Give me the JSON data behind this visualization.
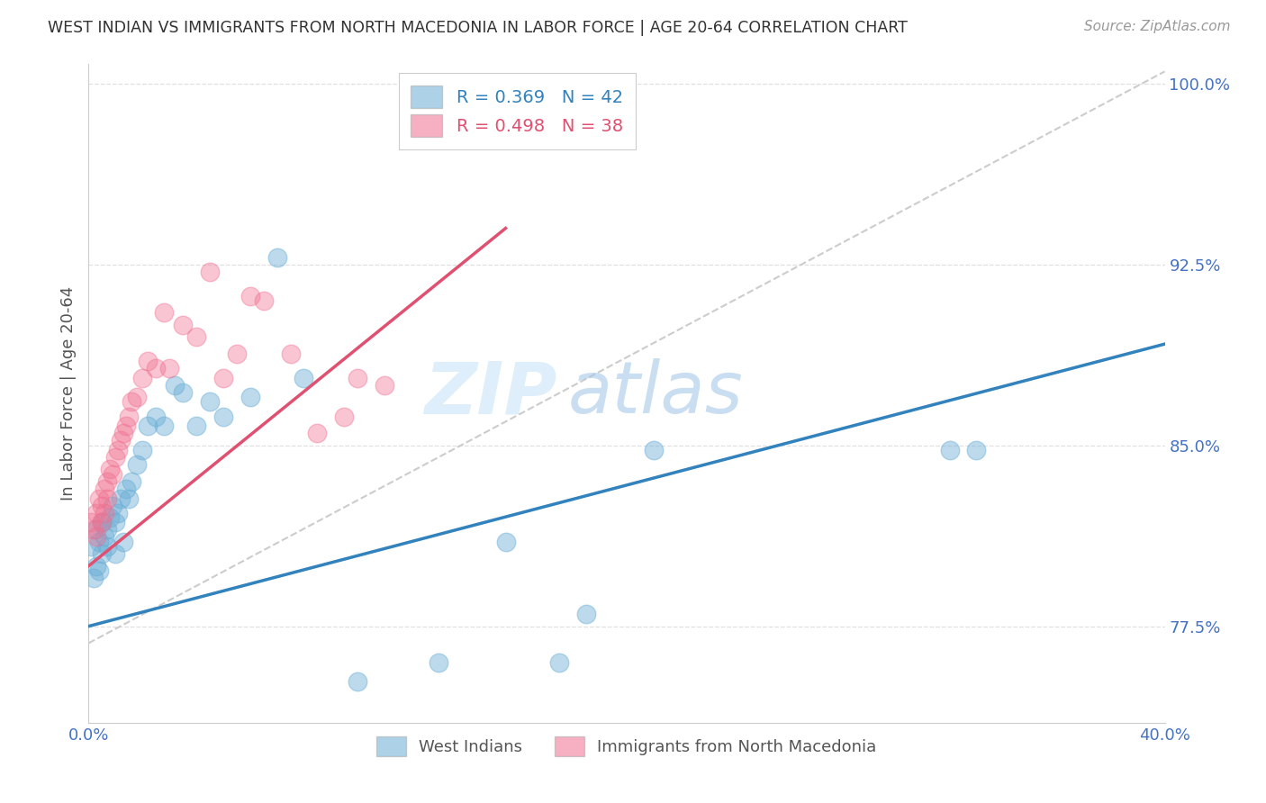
{
  "title": "WEST INDIAN VS IMMIGRANTS FROM NORTH MACEDONIA IN LABOR FORCE | AGE 20-64 CORRELATION CHART",
  "source": "Source: ZipAtlas.com",
  "ylabel": "In Labor Force | Age 20-64",
  "xlim": [
    0.0,
    0.4
  ],
  "ylim": [
    0.735,
    1.008
  ],
  "yticks": [
    0.775,
    0.85,
    0.925,
    1.0
  ],
  "yticklabels": [
    "77.5%",
    "85.0%",
    "92.5%",
    "100.0%"
  ],
  "blue_color": "#6baed6",
  "pink_color": "#f07090",
  "blue_line_color": "#3182bd",
  "pink_line_color": "#e05070",
  "diag_color": "#cccccc",
  "R_blue": 0.369,
  "N_blue": 42,
  "R_pink": 0.498,
  "N_pink": 38,
  "legend_label_blue": "West Indians",
  "legend_label_pink": "Immigrants from North Macedonia",
  "axis_tick_color": "#4472c4",
  "watermark_zip": "ZIP",
  "watermark_atlas": "atlas",
  "blue_line_x0": 0.0,
  "blue_line_y0": 0.775,
  "blue_line_x1": 0.4,
  "blue_line_y1": 0.892,
  "pink_line_x0": 0.0,
  "pink_line_y0": 0.8,
  "pink_line_x1": 0.155,
  "pink_line_y1": 0.94,
  "blue_scatter_x": [
    0.001,
    0.002,
    0.003,
    0.003,
    0.004,
    0.004,
    0.005,
    0.005,
    0.006,
    0.007,
    0.007,
    0.008,
    0.009,
    0.01,
    0.01,
    0.011,
    0.012,
    0.013,
    0.014,
    0.015,
    0.016,
    0.018,
    0.02,
    0.022,
    0.025,
    0.028,
    0.032,
    0.035,
    0.04,
    0.045,
    0.05,
    0.06,
    0.07,
    0.08,
    0.1,
    0.13,
    0.155,
    0.21,
    0.32,
    0.33,
    0.175,
    0.185
  ],
  "blue_scatter_y": [
    0.808,
    0.795,
    0.815,
    0.8,
    0.81,
    0.798,
    0.818,
    0.805,
    0.812,
    0.808,
    0.815,
    0.82,
    0.825,
    0.805,
    0.818,
    0.822,
    0.828,
    0.81,
    0.832,
    0.828,
    0.835,
    0.842,
    0.848,
    0.858,
    0.862,
    0.858,
    0.875,
    0.872,
    0.858,
    0.868,
    0.862,
    0.87,
    0.928,
    0.878,
    0.752,
    0.76,
    0.81,
    0.848,
    0.848,
    0.848,
    0.76,
    0.78
  ],
  "pink_scatter_x": [
    0.001,
    0.002,
    0.003,
    0.003,
    0.004,
    0.005,
    0.005,
    0.006,
    0.006,
    0.007,
    0.007,
    0.008,
    0.009,
    0.01,
    0.011,
    0.012,
    0.013,
    0.014,
    0.015,
    0.016,
    0.018,
    0.02,
    0.022,
    0.025,
    0.028,
    0.03,
    0.035,
    0.04,
    0.045,
    0.05,
    0.055,
    0.06,
    0.065,
    0.075,
    0.085,
    0.095,
    0.1,
    0.11
  ],
  "pink_scatter_y": [
    0.818,
    0.815,
    0.822,
    0.812,
    0.828,
    0.825,
    0.818,
    0.832,
    0.822,
    0.835,
    0.828,
    0.84,
    0.838,
    0.845,
    0.848,
    0.852,
    0.855,
    0.858,
    0.862,
    0.868,
    0.87,
    0.878,
    0.885,
    0.882,
    0.905,
    0.882,
    0.9,
    0.895,
    0.922,
    0.878,
    0.888,
    0.912,
    0.91,
    0.888,
    0.855,
    0.862,
    0.878,
    0.875
  ]
}
